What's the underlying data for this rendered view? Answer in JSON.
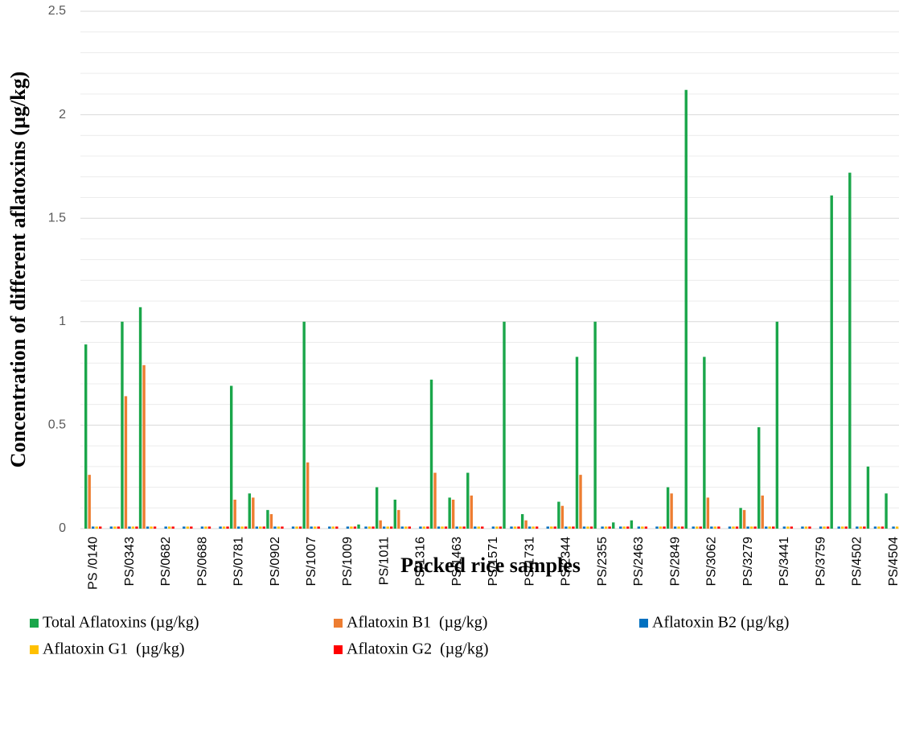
{
  "chart_data": {
    "type": "bar",
    "ylabel": "Concentration of different aflatoxins (µg/kg)",
    "xlabel": "Packed rice samples",
    "categories": [
      "PS /0140",
      null,
      "PS/0343",
      null,
      "PS/0682",
      null,
      "PS/0688",
      null,
      "PS/0781",
      null,
      "PS/0902",
      null,
      "PS/1007",
      null,
      "PS/1009",
      null,
      "PS/1011",
      null,
      "PS/1316",
      null,
      "PS/1463",
      null,
      "PS/1571",
      null,
      "PS/1731",
      null,
      "PS/2344",
      null,
      "PS/2355",
      null,
      "PS/2463",
      null,
      "PS/2849",
      null,
      "PS/3062",
      null,
      "PS/3279",
      null,
      "PS/3441",
      null,
      "PS/3759",
      null,
      "PS/4502",
      null,
      "PS/4504"
    ],
    "series": [
      {
        "name": "Total Aflatoxins (µg/kg)",
        "color": "#1aa64a",
        "values": [
          0.89,
          0,
          1.0,
          1.07,
          0,
          0,
          0,
          0,
          0.69,
          0.17,
          0.09,
          0,
          1.0,
          0,
          0,
          0.02,
          0.2,
          0.14,
          0,
          0.72,
          0.15,
          0.27,
          0,
          1.0,
          0.07,
          0,
          0.13,
          0.83,
          1.0,
          0.03,
          0.04,
          0,
          0.2,
          2.12,
          0.83,
          0,
          0.1,
          0.49,
          1.0,
          0,
          0,
          1.61,
          1.72,
          0.3,
          0.17
        ]
      },
      {
        "name": "Aflatoxin B1  (µg/kg)",
        "color": "#ed7d31",
        "values": [
          0.26,
          0,
          0.64,
          0.79,
          0,
          0,
          0,
          0,
          0.14,
          0.15,
          0.07,
          0,
          0.32,
          0,
          0,
          0,
          0.04,
          0.09,
          0,
          0.27,
          0.14,
          0.16,
          0,
          0,
          0.04,
          0,
          0.11,
          0.26,
          0,
          0,
          0,
          0,
          0.17,
          0,
          0.15,
          0,
          0.09,
          0.16,
          0,
          0,
          0,
          0,
          0,
          0,
          0
        ]
      },
      {
        "name": "Aflatoxin B2 (µg/kg)",
        "color": "#0070c0",
        "values": [
          0.01,
          0.01,
          0.01,
          0.01,
          0.01,
          0.01,
          0.01,
          0.01,
          0.01,
          0.01,
          0.01,
          0.01,
          0.01,
          0.01,
          0.01,
          0.01,
          0.01,
          0.01,
          0.01,
          0.01,
          0.01,
          0.01,
          0.01,
          0.01,
          0.01,
          0.01,
          0.01,
          0.01,
          0.01,
          0.01,
          0.01,
          0.01,
          0.01,
          0.01,
          0.01,
          0.01,
          0.01,
          0.01,
          0.01,
          0.01,
          0.01,
          0.01,
          0.01,
          0.01,
          0.01
        ]
      },
      {
        "name": "Aflatoxin G1  (µg/kg)",
        "color": "#ffc000",
        "values": [
          0.01,
          0.01,
          0.01,
          0.01,
          0.01,
          0.01,
          0.01,
          0.01,
          0.01,
          0.01,
          0.01,
          0.01,
          0.01,
          0.01,
          0.01,
          0.01,
          0.01,
          0.01,
          0.01,
          0.01,
          0.01,
          0.01,
          0.01,
          0.01,
          0.01,
          0.01,
          0.01,
          0.01,
          0.01,
          0.01,
          0.01,
          0.01,
          0.01,
          0.01,
          0.01,
          0.01,
          0.01,
          0.01,
          0.01,
          0.01,
          0.01,
          0.01,
          0.01,
          0.01,
          0.01
        ]
      },
      {
        "name": "Aflatoxin G2  (µg/kg)",
        "color": "#ff0000",
        "values": [
          0.01,
          0.01,
          0.01,
          0.01,
          0.01,
          0.01,
          0.01,
          0.01,
          0.01,
          0.01,
          0.01,
          0.01,
          0.01,
          0.01,
          0.01,
          0.01,
          0.01,
          0.01,
          0.01,
          0.01,
          0.01,
          0.01,
          0.01,
          0.01,
          0.01,
          0.01,
          0.01,
          0.01,
          0.01,
          0.01,
          0.01,
          0.01,
          0.01,
          0.01,
          0.01,
          0.01,
          0.01,
          0.01,
          0.01,
          0.01,
          0.01,
          0.01,
          0.01,
          0.01,
          0.01
        ]
      }
    ],
    "ylim": [
      0,
      2.5
    ],
    "yticks": [
      0,
      0.5,
      1,
      1.5,
      2,
      2.5
    ],
    "grid": true
  }
}
